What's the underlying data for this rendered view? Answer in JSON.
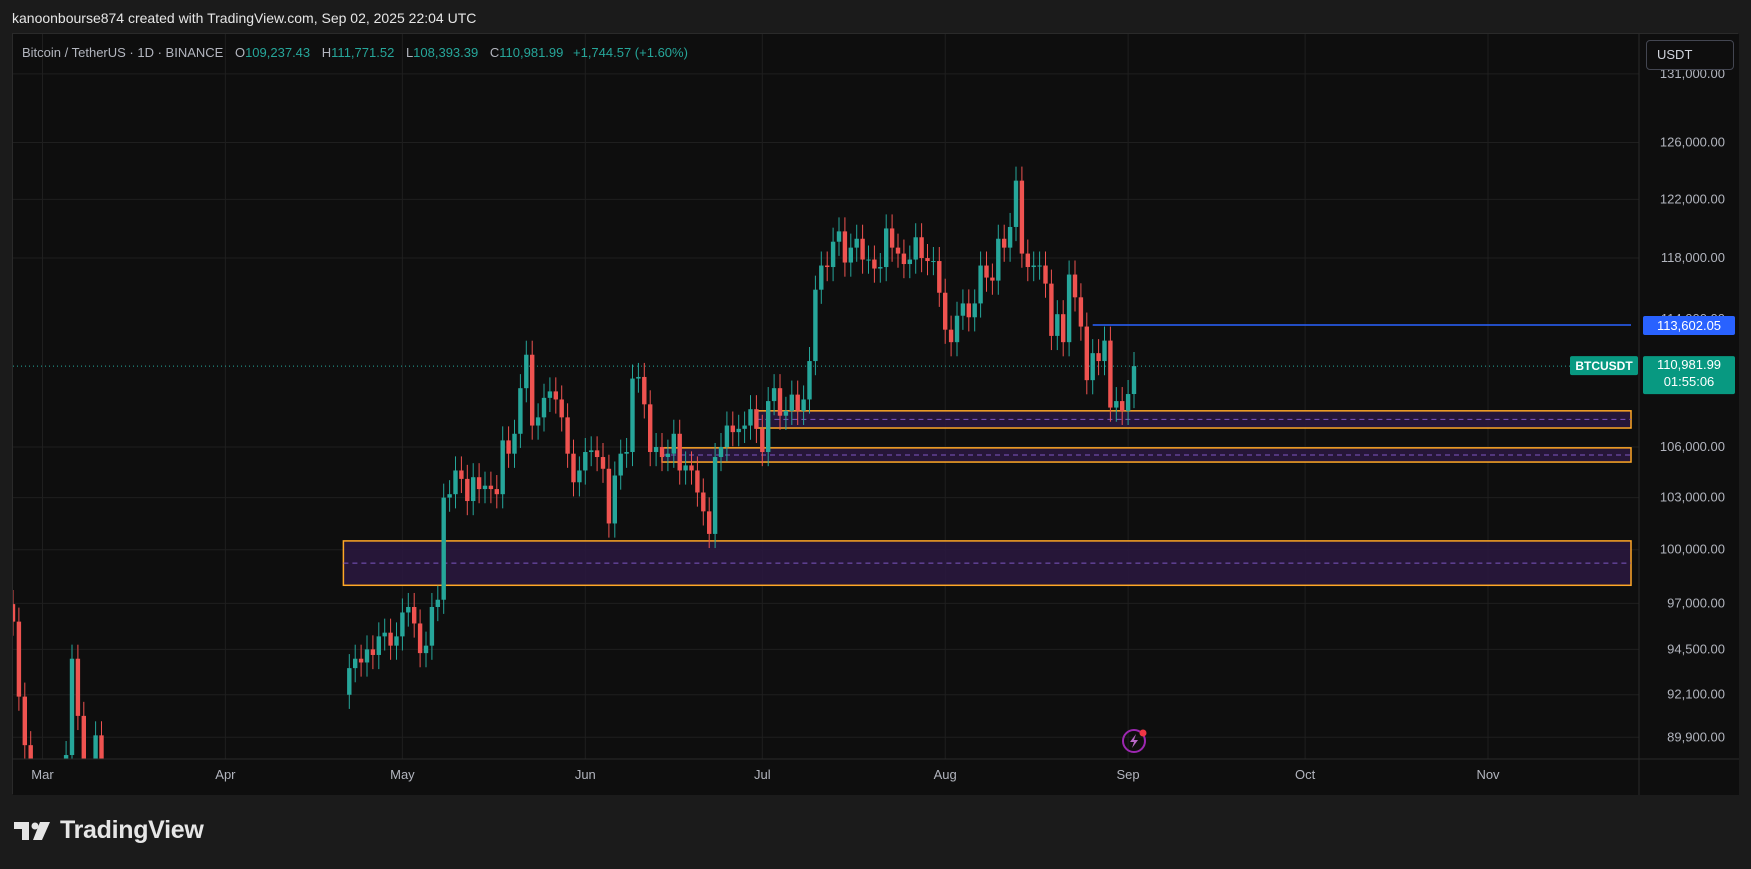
{
  "credit": "kanoonbourse874 created with TradingView.com, Sep 02, 2025 22:04 UTC",
  "legend": {
    "symbol": "Bitcoin / TetherUS · 1D · BINANCE",
    "open_label": "O",
    "open": "109,237.43",
    "high_label": "H",
    "high": "111,771.52",
    "low_label": "L",
    "low": "108,393.39",
    "close_label": "C",
    "close": "110,981.99",
    "change": "+1,744.57 (+1.60%)"
  },
  "currency_button": "USDT",
  "brand": "TradingView",
  "colors": {
    "up": "#26a69a",
    "down": "#ef5350",
    "zone_border": "#ffa726",
    "zone_fill": "#2a1840",
    "level_line": "#2962ff",
    "price_tag": "#089981"
  },
  "chart_data": {
    "type": "candlestick",
    "interval": "1D",
    "yaxis": {
      "scale": "log",
      "range": [
        88800,
        134000
      ],
      "ticks": [
        "131,000.00",
        "126,000.00",
        "122,000.00",
        "118,000.00",
        "106,000.00",
        "103,000.00",
        "100,000.00",
        "97,000.00",
        "94,500.00",
        "92,100.00",
        "89,900.00"
      ],
      "tick_values": [
        131000,
        126000,
        122000,
        118000,
        106000,
        103000,
        100000,
        97000,
        94500,
        92100,
        89900
      ]
    },
    "xaxis": {
      "start": "2025-02-24",
      "end": "2025-11-25",
      "month_labels": [
        {
          "label": "Mar",
          "date": "2025-03-01"
        },
        {
          "label": "Apr",
          "date": "2025-04-01"
        },
        {
          "label": "May",
          "date": "2025-05-01"
        },
        {
          "label": "Jun",
          "date": "2025-06-01"
        },
        {
          "label": "Jul",
          "date": "2025-07-01"
        },
        {
          "label": "Aug",
          "date": "2025-08-01"
        },
        {
          "label": "Sep",
          "date": "2025-09-01"
        },
        {
          "label": "Oct",
          "date": "2025-10-01"
        },
        {
          "label": "Nov",
          "date": "2025-11-01"
        }
      ]
    },
    "grid": true,
    "candles_close": [
      {
        "date": "2025-02-24",
        "c": 96000
      },
      {
        "date": "2025-02-25",
        "c": 92000
      },
      {
        "date": "2025-02-26",
        "c": 89500
      },
      {
        "date": "2025-02-27",
        "c": 85000
      },
      {
        "date": "2025-03-05",
        "c": 89000
      },
      {
        "date": "2025-03-06",
        "c": 94000
      },
      {
        "date": "2025-03-07",
        "c": 91000
      },
      {
        "date": "2025-03-08",
        "c": 86500
      },
      {
        "date": "2025-03-10",
        "c": 90000
      },
      {
        "date": "2025-03-11",
        "c": 88500
      },
      {
        "date": "2025-04-22",
        "c": 93500
      },
      {
        "date": "2025-04-23",
        "c": 94000
      },
      {
        "date": "2025-04-24",
        "c": 93800
      },
      {
        "date": "2025-04-25",
        "c": 94500
      },
      {
        "date": "2025-04-26",
        "c": 94200
      },
      {
        "date": "2025-04-27",
        "c": 95200
      },
      {
        "date": "2025-04-28",
        "c": 95400
      },
      {
        "date": "2025-04-29",
        "c": 94700
      },
      {
        "date": "2025-04-30",
        "c": 95200
      },
      {
        "date": "2025-05-01",
        "c": 96500
      },
      {
        "date": "2025-05-02",
        "c": 96800
      },
      {
        "date": "2025-05-03",
        "c": 95900
      },
      {
        "date": "2025-05-04",
        "c": 94300
      },
      {
        "date": "2025-05-05",
        "c": 94700
      },
      {
        "date": "2025-05-06",
        "c": 96800
      },
      {
        "date": "2025-05-07",
        "c": 97200
      },
      {
        "date": "2025-05-08",
        "c": 103000
      },
      {
        "date": "2025-05-09",
        "c": 103200
      },
      {
        "date": "2025-05-10",
        "c": 104600
      },
      {
        "date": "2025-05-11",
        "c": 104100
      },
      {
        "date": "2025-05-12",
        "c": 102800
      },
      {
        "date": "2025-05-13",
        "c": 104200
      },
      {
        "date": "2025-05-14",
        "c": 103500
      },
      {
        "date": "2025-05-15",
        "c": 103700
      },
      {
        "date": "2025-05-16",
        "c": 103500
      },
      {
        "date": "2025-05-17",
        "c": 103200
      },
      {
        "date": "2025-05-18",
        "c": 106400
      },
      {
        "date": "2025-05-19",
        "c": 105600
      },
      {
        "date": "2025-05-20",
        "c": 106800
      },
      {
        "date": "2025-05-21",
        "c": 109600
      },
      {
        "date": "2025-05-22",
        "c": 111700
      },
      {
        "date": "2025-05-23",
        "c": 107300
      },
      {
        "date": "2025-05-24",
        "c": 107800
      },
      {
        "date": "2025-05-25",
        "c": 109000
      },
      {
        "date": "2025-05-26",
        "c": 109400
      },
      {
        "date": "2025-05-27",
        "c": 108900
      },
      {
        "date": "2025-05-28",
        "c": 107800
      },
      {
        "date": "2025-05-29",
        "c": 105600
      },
      {
        "date": "2025-05-30",
        "c": 103900
      },
      {
        "date": "2025-05-31",
        "c": 104600
      },
      {
        "date": "2025-06-01",
        "c": 105700
      },
      {
        "date": "2025-06-02",
        "c": 105800
      },
      {
        "date": "2025-06-03",
        "c": 105400
      },
      {
        "date": "2025-06-04",
        "c": 104700
      },
      {
        "date": "2025-06-05",
        "c": 101500
      },
      {
        "date": "2025-06-06",
        "c": 104300
      },
      {
        "date": "2025-06-07",
        "c": 105600
      },
      {
        "date": "2025-06-08",
        "c": 105700
      },
      {
        "date": "2025-06-09",
        "c": 110200
      },
      {
        "date": "2025-06-10",
        "c": 110300
      },
      {
        "date": "2025-06-11",
        "c": 108600
      },
      {
        "date": "2025-06-12",
        "c": 105700
      },
      {
        "date": "2025-06-13",
        "c": 106000
      },
      {
        "date": "2025-06-14",
        "c": 105400
      },
      {
        "date": "2025-06-15",
        "c": 105600
      },
      {
        "date": "2025-06-16",
        "c": 106800
      },
      {
        "date": "2025-06-17",
        "c": 104600
      },
      {
        "date": "2025-06-18",
        "c": 104900
      },
      {
        "date": "2025-06-19",
        "c": 104600
      },
      {
        "date": "2025-06-20",
        "c": 103300
      },
      {
        "date": "2025-06-21",
        "c": 102200
      },
      {
        "date": "2025-06-22",
        "c": 100900
      },
      {
        "date": "2025-06-23",
        "c": 105400
      },
      {
        "date": "2025-06-24",
        "c": 106000
      },
      {
        "date": "2025-06-25",
        "c": 107300
      },
      {
        "date": "2025-06-26",
        "c": 106900
      },
      {
        "date": "2025-06-27",
        "c": 107100
      },
      {
        "date": "2025-06-28",
        "c": 107300
      },
      {
        "date": "2025-06-29",
        "c": 108300
      },
      {
        "date": "2025-06-30",
        "c": 107100
      },
      {
        "date": "2025-07-01",
        "c": 105700
      },
      {
        "date": "2025-07-02",
        "c": 108800
      },
      {
        "date": "2025-07-03",
        "c": 109600
      },
      {
        "date": "2025-07-04",
        "c": 107900
      },
      {
        "date": "2025-07-05",
        "c": 108200
      },
      {
        "date": "2025-07-06",
        "c": 109200
      },
      {
        "date": "2025-07-07",
        "c": 108200
      },
      {
        "date": "2025-07-08",
        "c": 108900
      },
      {
        "date": "2025-07-09",
        "c": 111300
      },
      {
        "date": "2025-07-10",
        "c": 115900
      },
      {
        "date": "2025-07-11",
        "c": 117500
      },
      {
        "date": "2025-07-12",
        "c": 117400
      },
      {
        "date": "2025-07-13",
        "c": 119100
      },
      {
        "date": "2025-07-14",
        "c": 119800
      },
      {
        "date": "2025-07-15",
        "c": 117700
      },
      {
        "date": "2025-07-16",
        "c": 118700
      },
      {
        "date": "2025-07-17",
        "c": 119300
      },
      {
        "date": "2025-07-18",
        "c": 117900
      },
      {
        "date": "2025-07-19",
        "c": 117900
      },
      {
        "date": "2025-07-20",
        "c": 117300
      },
      {
        "date": "2025-07-21",
        "c": 117400
      },
      {
        "date": "2025-07-22",
        "c": 120000
      },
      {
        "date": "2025-07-23",
        "c": 118700
      },
      {
        "date": "2025-07-24",
        "c": 118300
      },
      {
        "date": "2025-07-25",
        "c": 117600
      },
      {
        "date": "2025-07-26",
        "c": 117900
      },
      {
        "date": "2025-07-27",
        "c": 119400
      },
      {
        "date": "2025-07-28",
        "c": 118000
      },
      {
        "date": "2025-07-29",
        "c": 117800
      },
      {
        "date": "2025-07-30",
        "c": 117800
      },
      {
        "date": "2025-07-31",
        "c": 115700
      },
      {
        "date": "2025-08-01",
        "c": 113300
      },
      {
        "date": "2025-08-02",
        "c": 112500
      },
      {
        "date": "2025-08-03",
        "c": 114200
      },
      {
        "date": "2025-08-04",
        "c": 115000
      },
      {
        "date": "2025-08-05",
        "c": 114100
      },
      {
        "date": "2025-08-06",
        "c": 115000
      },
      {
        "date": "2025-08-07",
        "c": 117500
      },
      {
        "date": "2025-08-08",
        "c": 116700
      },
      {
        "date": "2025-08-09",
        "c": 116500
      },
      {
        "date": "2025-08-10",
        "c": 119300
      },
      {
        "date": "2025-08-11",
        "c": 118700
      },
      {
        "date": "2025-08-12",
        "c": 120100
      },
      {
        "date": "2025-08-13",
        "c": 123300
      },
      {
        "date": "2025-08-14",
        "c": 118300
      },
      {
        "date": "2025-08-15",
        "c": 117400
      },
      {
        "date": "2025-08-16",
        "c": 117500
      },
      {
        "date": "2025-08-17",
        "c": 117500
      },
      {
        "date": "2025-08-18",
        "c": 116300
      },
      {
        "date": "2025-08-19",
        "c": 112900
      },
      {
        "date": "2025-08-20",
        "c": 114300
      },
      {
        "date": "2025-08-21",
        "c": 112500
      },
      {
        "date": "2025-08-22",
        "c": 116900
      },
      {
        "date": "2025-08-23",
        "c": 115400
      },
      {
        "date": "2025-08-24",
        "c": 113500
      },
      {
        "date": "2025-08-25",
        "c": 110100
      },
      {
        "date": "2025-08-26",
        "c": 111800
      },
      {
        "date": "2025-08-27",
        "c": 111300
      },
      {
        "date": "2025-08-28",
        "c": 112600
      },
      {
        "date": "2025-08-29",
        "c": 108400
      },
      {
        "date": "2025-08-30",
        "c": 108800
      },
      {
        "date": "2025-08-31",
        "c": 108200
      },
      {
        "date": "2025-09-01",
        "c": 109237
      },
      {
        "date": "2025-09-02",
        "c": 110982
      }
    ],
    "zones": [
      {
        "top": 108200,
        "bottom": 107150
      },
      {
        "top": 105950,
        "bottom": 105100
      },
      {
        "top": 100500,
        "bottom": 98000
      }
    ],
    "horizontal_level": {
      "value": 113602.05,
      "start_date": "2025-08-26"
    },
    "last_price": 110981.99,
    "price_label": "113,602.05",
    "last_price_label": "110,981.99",
    "symbol_tag": "BTCUSDT",
    "countdown": "01:55:06",
    "hidden_tick_label": "114,000.00"
  }
}
